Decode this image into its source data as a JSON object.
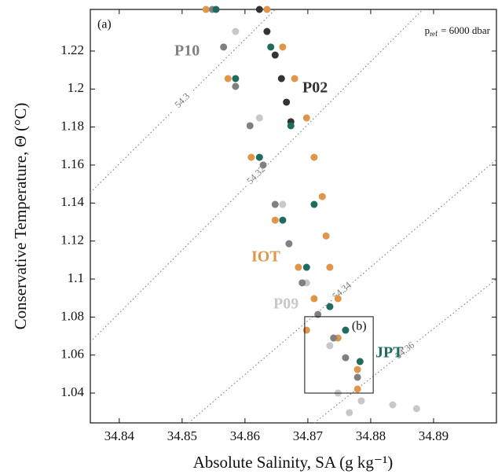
{
  "chart_data": {
    "type": "scatter",
    "panel_label": "(a)",
    "pressure_note": {
      "symbol": "p",
      "subscript": "ref",
      "text": "= 6000 dbar"
    },
    "x_label": "Absolute Salinity, SA (g kg⁻¹)",
    "y_label": "Conservative Temperature, Θ (°C)",
    "xlim": [
      34.8354,
      34.9
    ],
    "ylim": [
      1.0243,
      1.2419
    ],
    "xticks": [
      34.84,
      34.85,
      34.86,
      34.87,
      34.88,
      34.89
    ],
    "yticks": [
      1.04,
      1.06,
      1.08,
      1.1,
      1.12,
      1.14,
      1.16,
      1.18,
      1.2,
      1.22
    ],
    "contours": [
      {
        "level": 54.3,
        "x": [
          34.8354,
          34.8648
        ],
        "y": [
          1.1455,
          1.2419
        ]
      },
      {
        "level": 54.32,
        "x": [
          34.8354,
          34.8883
        ],
        "y": [
          1.0669,
          1.2419
        ]
      },
      {
        "level": 54.34,
        "x": [
          34.851,
          34.9
        ],
        "y": [
          1.0243,
          1.1629
        ]
      },
      {
        "level": 54.36,
        "x": [
          34.871,
          34.9
        ],
        "y": [
          1.0243,
          1.1
        ]
      }
    ],
    "inset_box": {
      "label": "(b)",
      "xlim": [
        34.8695,
        34.8804
      ],
      "ylim": [
        1.04,
        1.0802
      ]
    },
    "series": [
      {
        "name": "P09",
        "color": "#c8c8c8",
        "x": [
          34.8585,
          34.8623,
          34.866,
          34.8698,
          34.8735,
          34.8748,
          34.8785,
          34.8835,
          34.8873,
          34.8766
        ],
        "values": [
          1.2303,
          1.1848,
          1.1393,
          1.098,
          1.0649,
          1.04,
          1.0359,
          1.0338,
          1.0318,
          1.0297
        ]
      },
      {
        "name": "IOT",
        "color": "#e0954a",
        "x": [
          34.8538,
          34.8573,
          34.861,
          34.8648,
          34.8685,
          34.871,
          34.8698,
          34.8748,
          34.8635,
          34.866,
          34.8679,
          34.8698,
          34.871,
          34.8723,
          34.8729,
          34.8735,
          34.8748,
          34.876,
          34.8779,
          34.8779
        ],
        "values": [
          1.2419,
          1.2055,
          1.1641,
          1.131,
          1.1062,
          1.0897,
          1.0731,
          1.069,
          1.2419,
          1.2221,
          1.2055,
          1.1848,
          1.1641,
          1.1434,
          1.1227,
          1.1062,
          1.0897,
          1.0731,
          1.0524,
          1.0421
        ]
      },
      {
        "name": "P10",
        "color": "#808080",
        "x": [
          34.8548,
          34.8566,
          34.8585,
          34.8608,
          34.8629,
          34.8648,
          34.867,
          34.8691,
          34.8716,
          34.8741,
          34.876,
          34.8779
        ],
        "values": [
          1.2419,
          1.2221,
          1.2014,
          1.1807,
          1.16,
          1.1393,
          1.1186,
          1.098,
          1.0814,
          1.069,
          1.0586,
          1.0483
        ]
      },
      {
        "name": "P02",
        "color": "#333333",
        "x": [
          34.8623,
          34.8635,
          34.8648,
          34.8658,
          34.8666,
          34.8673
        ],
        "values": [
          1.2419,
          1.2303,
          1.2179,
          1.2055,
          1.1931,
          1.1828
        ]
      },
      {
        "name": "JPT",
        "color": "#1f6b5e",
        "x": [
          34.8554,
          34.8585,
          34.8623,
          34.866,
          34.8698,
          34.8735,
          34.876,
          34.8783,
          34.8641,
          34.8673,
          34.871
        ],
        "values": [
          1.2419,
          1.2055,
          1.1641,
          1.131,
          1.1062,
          1.0855,
          1.0731,
          1.0566,
          1.2221,
          1.1807,
          1.1393
        ]
      }
    ]
  }
}
